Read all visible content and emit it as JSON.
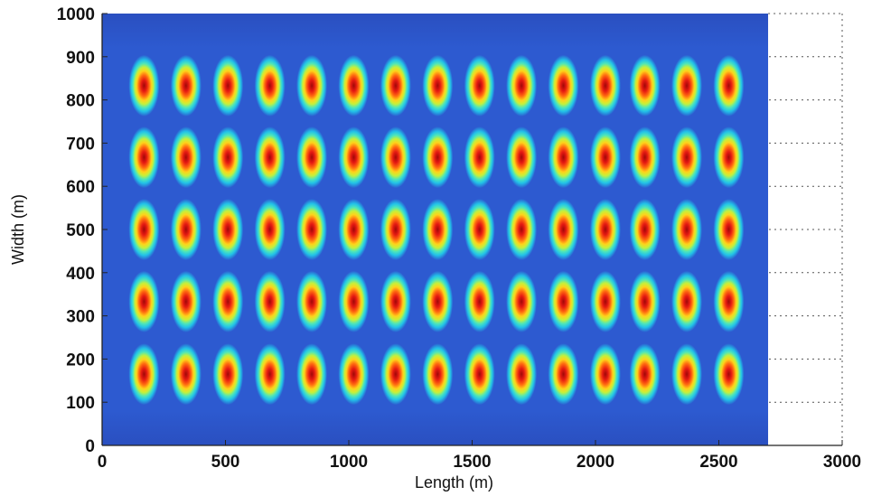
{
  "chart_data": {
    "type": "heatmap",
    "title": "",
    "xlabel": "Length (m)",
    "ylabel": "Width (m)",
    "xlim": [
      0,
      3000
    ],
    "ylim": [
      0,
      1000
    ],
    "x_ticks": [
      0,
      500,
      1000,
      1500,
      2000,
      2500,
      3000
    ],
    "y_ticks": [
      0,
      100,
      200,
      300,
      400,
      500,
      600,
      700,
      800,
      900,
      1000
    ],
    "x_tick_labels": [
      "0",
      "500",
      "1000",
      "1500",
      "2000",
      "2500",
      "3000"
    ],
    "y_tick_labels": [
      "0",
      "100",
      "200",
      "300",
      "400",
      "500",
      "600",
      "700",
      "800",
      "900",
      "1000"
    ],
    "grid": true,
    "colormap": "jet",
    "heatmap_extent": {
      "x": [
        0,
        2700
      ],
      "y": [
        0,
        1000
      ]
    },
    "hotspot_x": [
      170,
      340,
      510,
      680,
      850,
      1020,
      1190,
      1360,
      1530,
      1700,
      1870,
      2040,
      2200,
      2370,
      2540
    ],
    "hotspot_y": [
      165,
      333,
      500,
      667,
      833
    ],
    "colors": {
      "background": "#2b55c9",
      "peak": "#b01010",
      "grid": "#555555"
    }
  }
}
